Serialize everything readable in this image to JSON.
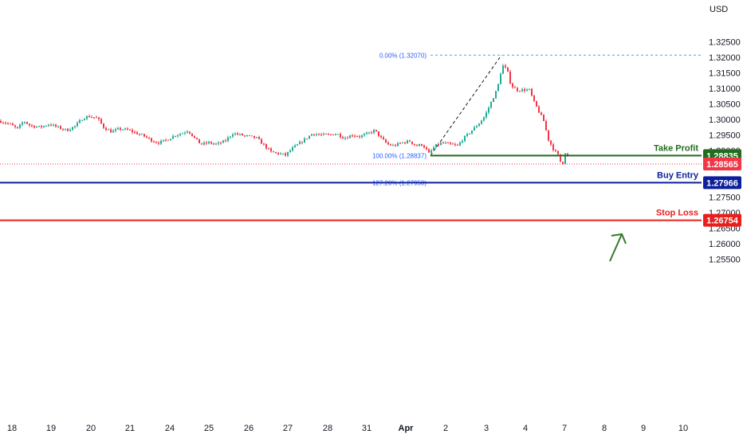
{
  "currency": "USD",
  "chart_data": {
    "type": "candlestick",
    "ylim": [
      1.2485,
      1.3285
    ],
    "y_ticks": [
      "1.32500",
      "1.32000",
      "1.31500",
      "1.31000",
      "1.30500",
      "1.30000",
      "1.29500",
      "1.29000",
      "1.28500",
      "1.28000",
      "1.27500",
      "1.27000",
      "1.26500",
      "1.26000",
      "1.25500"
    ],
    "x_ticks": [
      {
        "label": "18",
        "bold": false
      },
      {
        "label": "19",
        "bold": false
      },
      {
        "label": "20",
        "bold": false
      },
      {
        "label": "21",
        "bold": false
      },
      {
        "label": "24",
        "bold": false
      },
      {
        "label": "25",
        "bold": false
      },
      {
        "label": "26",
        "bold": false
      },
      {
        "label": "27",
        "bold": false
      },
      {
        "label": "28",
        "bold": false
      },
      {
        "label": "31",
        "bold": false
      },
      {
        "label": "Apr",
        "bold": true
      },
      {
        "label": "2",
        "bold": false
      },
      {
        "label": "3",
        "bold": false
      },
      {
        "label": "4",
        "bold": false
      },
      {
        "label": "7",
        "bold": false
      },
      {
        "label": "8",
        "bold": false
      },
      {
        "label": "9",
        "bold": false
      },
      {
        "label": "10",
        "bold": false
      }
    ],
    "price_path": [
      [
        0,
        1.2995
      ],
      [
        12,
        1.2985
      ],
      [
        22,
        1.297
      ],
      [
        30,
        1.2995
      ],
      [
        38,
        1.298
      ],
      [
        50,
        1.2975
      ],
      [
        62,
        1.2985
      ],
      [
        72,
        1.2975
      ],
      [
        84,
        1.2965
      ],
      [
        95,
        1.298
      ],
      [
        104,
        1.3005
      ],
      [
        112,
        1.301
      ],
      [
        122,
        1.3005
      ],
      [
        130,
        1.2975
      ],
      [
        140,
        1.296
      ],
      [
        150,
        1.297
      ],
      [
        162,
        1.2965
      ],
      [
        172,
        1.2955
      ],
      [
        182,
        1.2945
      ],
      [
        192,
        1.293
      ],
      [
        200,
        1.2925
      ],
      [
        210,
        1.2935
      ],
      [
        220,
        1.295
      ],
      [
        228,
        1.2955
      ],
      [
        236,
        1.2965
      ],
      [
        244,
        1.294
      ],
      [
        252,
        1.292
      ],
      [
        262,
        1.2925
      ],
      [
        272,
        1.292
      ],
      [
        282,
        1.293
      ],
      [
        292,
        1.2955
      ],
      [
        302,
        1.295
      ],
      [
        312,
        1.2945
      ],
      [
        322,
        1.294
      ],
      [
        330,
        1.292
      ],
      [
        340,
        1.2895
      ],
      [
        350,
        1.289
      ],
      [
        358,
        1.2885
      ],
      [
        366,
        1.2905
      ],
      [
        374,
        1.292
      ],
      [
        382,
        1.2935
      ],
      [
        392,
        1.2955
      ],
      [
        402,
        1.295
      ],
      [
        412,
        1.295
      ],
      [
        422,
        1.2955
      ],
      [
        432,
        1.294
      ],
      [
        442,
        1.295
      ],
      [
        452,
        1.2945
      ],
      [
        462,
        1.2955
      ],
      [
        470,
        1.2965
      ],
      [
        478,
        1.294
      ],
      [
        486,
        1.292
      ],
      [
        494,
        1.2915
      ],
      [
        504,
        1.2925
      ],
      [
        514,
        1.293
      ],
      [
        522,
        1.2915
      ],
      [
        530,
        1.292
      ],
      [
        538,
        1.289
      ],
      [
        546,
        1.2915
      ],
      [
        555,
        1.2925
      ],
      [
        564,
        1.292
      ],
      [
        574,
        1.2915
      ],
      [
        580,
        1.2935
      ],
      [
        590,
        1.296
      ],
      [
        600,
        1.2985
      ],
      [
        608,
        1.301
      ],
      [
        616,
        1.3055
      ],
      [
        624,
        1.31
      ],
      [
        630,
        1.3175
      ],
      [
        636,
        1.316
      ],
      [
        641,
        1.311
      ],
      [
        648,
        1.3095
      ],
      [
        656,
        1.3095
      ],
      [
        664,
        1.3095
      ],
      [
        670,
        1.3055
      ],
      [
        676,
        1.3025
      ],
      [
        682,
        1.2995
      ],
      [
        688,
        1.2935
      ],
      [
        694,
        1.2905
      ],
      [
        700,
        1.2885
      ],
      [
        705,
        1.285
      ],
      [
        710,
        1.2905
      ],
      [
        714,
        1.2856
      ]
    ],
    "fib_levels": [
      {
        "label": "0.00% (1.32070)",
        "value": 1.3207
      },
      {
        "label": "100.00% (1.28837)",
        "value": 1.28837
      },
      {
        "label": "127.20% (1.27958)",
        "value": 1.27958
      }
    ],
    "levels": [
      {
        "name": "Take Profit",
        "value": 1.28835,
        "tag": "1.28835",
        "color": "#216d1d"
      },
      {
        "name": "Buy Entry",
        "value": 1.27966,
        "tag": "1.27966",
        "color": "#0d1f9c"
      },
      {
        "name": "Stop Loss",
        "value": 1.26754,
        "tag": "1.26754",
        "color": "#e8201d"
      }
    ],
    "current_price": {
      "tag": "1.28565",
      "value": 1.28565,
      "color": "#f23645"
    },
    "colors": {
      "up": "#22ab94",
      "down": "#f23645",
      "fib": "#5b9bd5",
      "arrow": "#2f7d22"
    }
  }
}
